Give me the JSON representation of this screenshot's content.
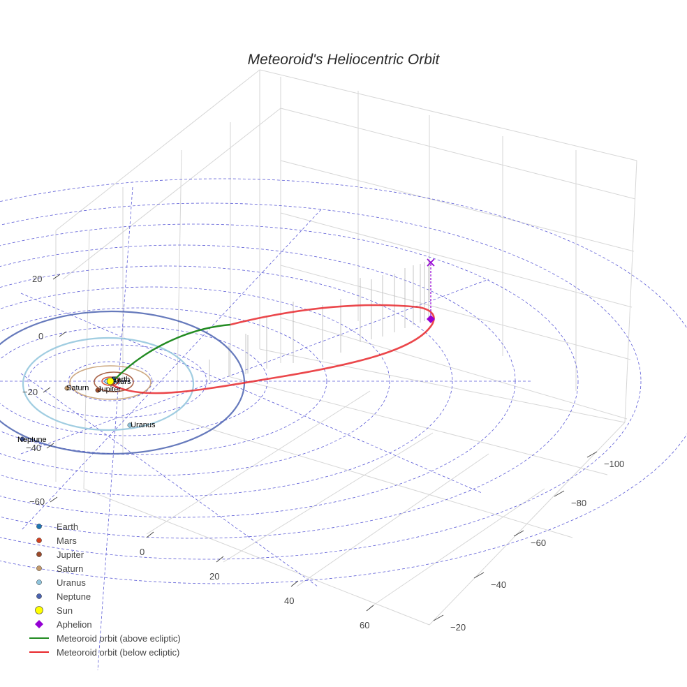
{
  "chart_data": {
    "type": "scatter3d",
    "title": "Meteoroid's Heliocentric Orbit",
    "axes": {
      "x": {
        "ticks": [
          -100,
          -80,
          -60,
          -40,
          -20
        ]
      },
      "y": {
        "ticks": [
          0,
          20,
          40,
          60
        ]
      },
      "z": {
        "ticks": [
          20,
          0,
          -20,
          -40,
          -60
        ]
      }
    },
    "planets": [
      {
        "name": "Earth",
        "color": "#1f77b4",
        "orbit_radius_au": 1.0
      },
      {
        "name": "Mars",
        "color": "#d2401f",
        "orbit_radius_au": 1.52
      },
      {
        "name": "Jupiter",
        "color": "#9b4a2a",
        "orbit_radius_au": 5.2
      },
      {
        "name": "Saturn",
        "color": "#c49a6c",
        "orbit_radius_au": 9.54
      },
      {
        "name": "Uranus",
        "color": "#8fc4dc",
        "orbit_radius_au": 19.2
      },
      {
        "name": "Neptune",
        "color": "#4b63b0",
        "orbit_radius_au": 30.1
      }
    ],
    "sun": {
      "name": "Sun",
      "color": "#ffff00"
    },
    "aphelion": {
      "name": "Aphelion",
      "color": "#9400d3"
    },
    "orbit_segments": [
      {
        "name": "Meteoroid orbit (above ecliptic)",
        "color": "#228b22"
      },
      {
        "name": "Meteoroid orbit (below ecliptic)",
        "color": "#e8272b"
      }
    ],
    "legend": [
      {
        "label": "Earth",
        "symbol": "dot",
        "color": "#1f77b4"
      },
      {
        "label": "Mars",
        "symbol": "dot",
        "color": "#d2401f"
      },
      {
        "label": "Jupiter",
        "symbol": "dot",
        "color": "#9b4a2a"
      },
      {
        "label": "Saturn",
        "symbol": "dot",
        "color": "#c49a6c"
      },
      {
        "label": "Uranus",
        "symbol": "dot",
        "color": "#8fc4dc"
      },
      {
        "label": "Neptune",
        "symbol": "dot",
        "color": "#4b63b0"
      },
      {
        "label": "Sun",
        "symbol": "big-dot",
        "color": "#ffff00"
      },
      {
        "label": "Aphelion",
        "symbol": "diamond",
        "color": "#9400d3"
      },
      {
        "label": "Meteoroid orbit (above ecliptic)",
        "symbol": "line",
        "color": "#228b22"
      },
      {
        "label": "Meteoroid orbit (below ecliptic)",
        "symbol": "line",
        "color": "#e8272b"
      }
    ],
    "legend_position": "bottom-left",
    "grid": true
  }
}
